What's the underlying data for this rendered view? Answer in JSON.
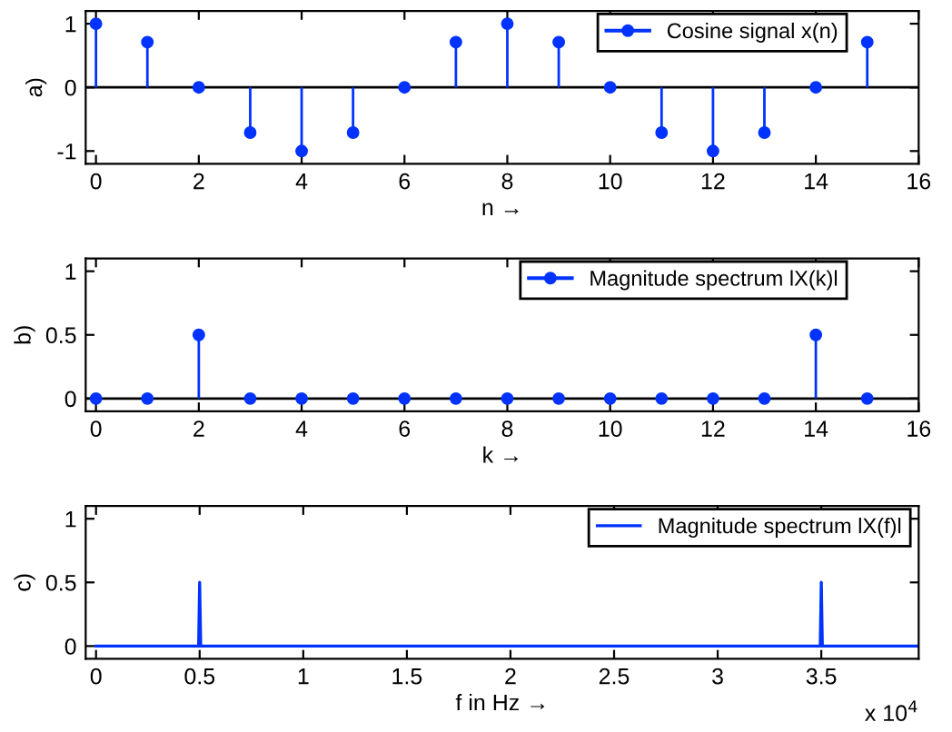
{
  "chart_data": [
    {
      "type": "lollipop",
      "ylabel": "a)",
      "xlabel": "n →",
      "x": [
        0,
        1,
        2,
        3,
        4,
        5,
        6,
        7,
        8,
        9,
        10,
        11,
        12,
        13,
        14,
        15
      ],
      "series": [
        {
          "name": "Cosine signal x(n)",
          "color": "#0033ff",
          "values": [
            1,
            0.71,
            0,
            -0.71,
            -1,
            -0.71,
            0,
            0.71,
            1,
            0.71,
            0,
            -0.71,
            -1,
            -0.71,
            0,
            0.71
          ]
        }
      ],
      "ref_lines": [
        {
          "axis": "y",
          "value": 0,
          "color": "#000000"
        }
      ],
      "xlim": [
        -0.2,
        16
      ],
      "xticks": [
        0,
        2,
        4,
        6,
        8,
        10,
        12,
        14,
        16
      ],
      "ylim": [
        -1.2,
        1.2
      ],
      "yticks": [
        -1,
        0,
        1
      ],
      "marker": "circle",
      "legend": "top right",
      "grid": false
    },
    {
      "type": "lollipop",
      "ylabel": "b)",
      "xlabel": "k →",
      "x": [
        0,
        1,
        2,
        3,
        4,
        5,
        6,
        7,
        8,
        9,
        10,
        11,
        12,
        13,
        14,
        15
      ],
      "series": [
        {
          "name": "Magnitude spectrum lX(k)l",
          "color": "#0033ff",
          "values": [
            0,
            0,
            0.5,
            0,
            0,
            0,
            0,
            0,
            0,
            0,
            0,
            0,
            0,
            0,
            0.5,
            0
          ]
        }
      ],
      "ref_lines": [
        {
          "axis": "y",
          "value": 0,
          "color": "#000000"
        }
      ],
      "xlim": [
        -0.2,
        16
      ],
      "xticks": [
        0,
        2,
        4,
        6,
        8,
        10,
        12,
        14,
        16
      ],
      "ylim": [
        -0.1,
        1.1
      ],
      "yticks": [
        0,
        0.5,
        1
      ],
      "marker": "circle",
      "legend": "top right",
      "grid": false
    },
    {
      "type": "line",
      "ylabel": "c)",
      "xlabel": "f in Hz →",
      "annotations": [
        "x 10$^{4}$"
      ],
      "series": [
        {
          "name": "Magnitude spectrum lX(f)l",
          "color": "#0033ff",
          "x": [
            0,
            0.495,
            0.5,
            0.505,
            3.495,
            3.5,
            3.505,
            3.96
          ],
          "values": [
            0,
            0,
            0.5,
            0,
            0,
            0.5,
            0,
            0
          ]
        }
      ],
      "xlim": [
        -0.05,
        3.97
      ],
      "xticks": [
        0,
        0.5,
        1,
        1.5,
        2,
        2.5,
        3,
        3.5
      ],
      "ylim": [
        -0.1,
        1.1
      ],
      "yticks": [
        0,
        0.5,
        1
      ],
      "marker": "none",
      "legend": "top right",
      "grid": false
    }
  ]
}
